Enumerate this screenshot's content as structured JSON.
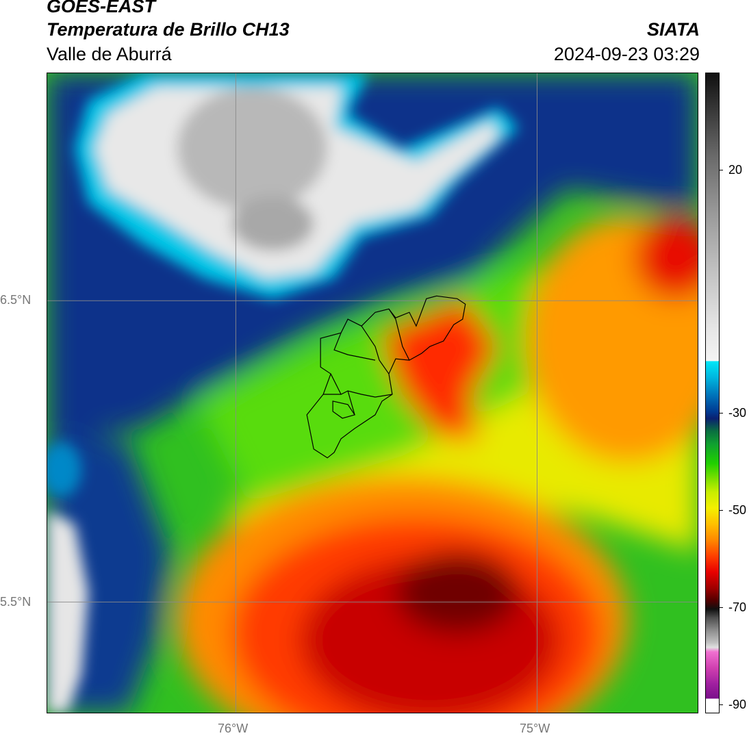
{
  "header": {
    "satellite": "GOES-EAST",
    "product": "Temperatura de Brillo CH13",
    "region": "Valle de Aburrá",
    "organization": "SIATA",
    "timestamp": "2024-09-23 03:29"
  },
  "map": {
    "lat_labels": [
      "6.5°N",
      "5.5°N"
    ],
    "lon_labels": [
      "76°W",
      "75°W"
    ],
    "gridlines": true,
    "boundary_outline": "Valle de Aburrá municipalities"
  },
  "colorbar": {
    "ticks": [
      "20",
      "-30",
      "-50",
      "-70",
      "-90"
    ],
    "units_hint": "°C",
    "colors": {
      "warm_gray_top": "#101010",
      "cyan": "#00e8f8",
      "dark_blue": "#003890",
      "green": "#20d000",
      "yellow": "#f4f000",
      "orange": "#ff8800",
      "red": "#e80000",
      "dark_red": "#500000",
      "magenta": "#d040b0",
      "purple": "#7a108a"
    }
  }
}
